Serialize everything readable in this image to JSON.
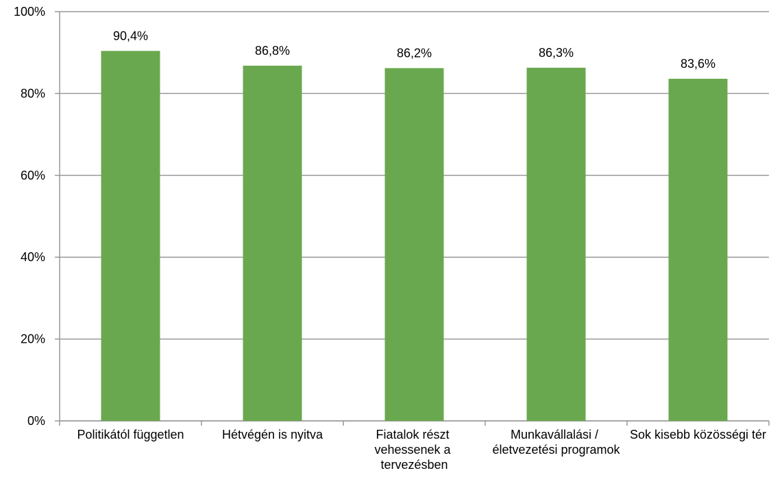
{
  "chart_data": {
    "type": "bar",
    "categories": [
      "Politikától független",
      "Hétvégén is nyitva",
      "Fiatalok részt vehessenek a tervezésben",
      "Munkavállalási / életvezetési programok",
      "Sok kisebb közösségi tér"
    ],
    "values": [
      90.4,
      86.8,
      86.2,
      86.3,
      83.6
    ],
    "value_labels": [
      "90,4%",
      "86,8%",
      "86,2%",
      "86,3%",
      "83,6%"
    ],
    "color": "#6aa84f",
    "ylim": [
      0,
      100
    ],
    "yticks": [
      {
        "value": 0,
        "label": "0%"
      },
      {
        "value": 20,
        "label": "20%"
      },
      {
        "value": 40,
        "label": "40%"
      },
      {
        "value": 60,
        "label": "60%"
      },
      {
        "value": 80,
        "label": "80%"
      },
      {
        "value": 100,
        "label": "100%"
      }
    ],
    "grid": true
  }
}
